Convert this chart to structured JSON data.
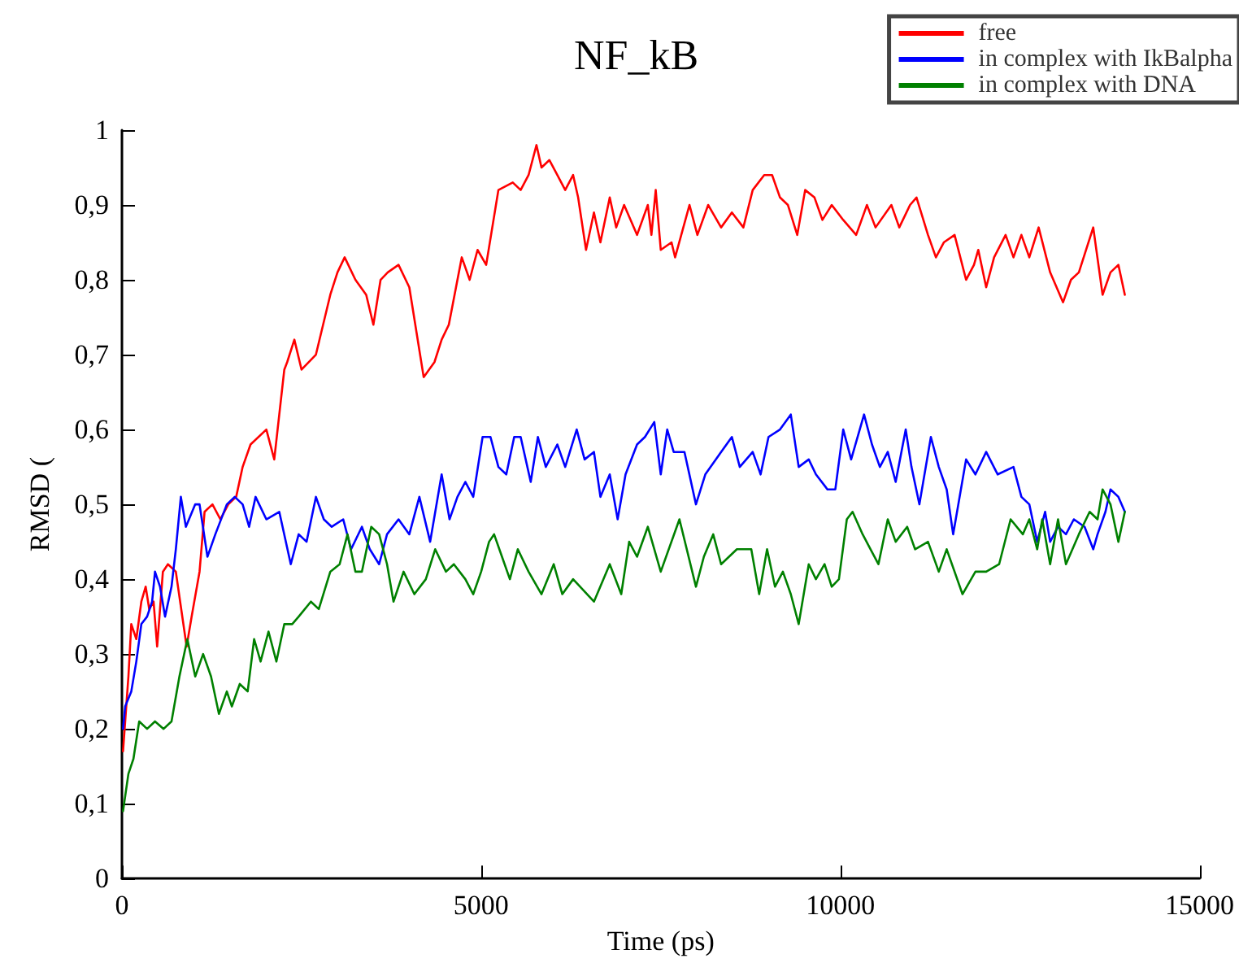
{
  "chart_data": {
    "type": "line",
    "title": "NF_kB",
    "xlabel": "Time (ps)",
    "ylabel": "RMSD (",
    "xlim": [
      0,
      15000
    ],
    "xticks": [
      0,
      5000,
      10000,
      15000
    ],
    "ylim": [
      0,
      1
    ],
    "yticks": [
      0,
      {
        "value": 0.1,
        "label": "0,1"
      },
      {
        "value": 0.2,
        "label": "0,2"
      },
      {
        "value": 0.3,
        "label": "0,3"
      },
      {
        "value": 0.4,
        "label": "0,4"
      },
      {
        "value": 0.5,
        "label": "0,5"
      },
      {
        "value": 0.6,
        "label": "0,6"
      },
      {
        "value": 0.7,
        "label": "0,7"
      },
      {
        "value": 0.8,
        "label": "0,8"
      },
      {
        "value": 0.9,
        "label": "0,9"
      },
      1
    ],
    "legend": "top right",
    "grid": false,
    "marker": "none",
    "line_style": "solid",
    "series": [
      {
        "name": "free",
        "color": "#ff0000",
        "x": [
          15,
          90,
          130,
          200,
          270,
          330,
          380,
          440,
          490,
          570,
          640,
          750,
          900,
          970,
          1080,
          1150,
          1260,
          1370,
          1480,
          1590,
          1680,
          1790,
          2010,
          2120,
          2190,
          2260,
          2300,
          2400,
          2500,
          2700,
          2900,
          3000,
          3100,
          3250,
          3400,
          3500,
          3600,
          3700,
          3850,
          4000,
          4100,
          4200,
          4350,
          4450,
          4550,
          4650,
          4730,
          4840,
          4950,
          5070,
          5240,
          5440,
          5550,
          5660,
          5770,
          5840,
          5950,
          6060,
          6170,
          6280,
          6350,
          6460,
          6570,
          6660,
          6790,
          6880,
          6990,
          7170,
          7320,
          7370,
          7430,
          7500,
          7650,
          7700,
          7900,
          8010,
          8160,
          8340,
          8490,
          8650,
          8780,
          8940,
          9050,
          9160,
          9270,
          9400,
          9510,
          9640,
          9750,
          9880,
          10040,
          10220,
          10370,
          10490,
          10710,
          10820,
          10970,
          11060,
          11220,
          11330,
          11440,
          11590,
          11750,
          11860,
          11920,
          12030,
          12140,
          12300,
          12410,
          12520,
          12630,
          12760,
          12920,
          13100,
          13210,
          13320,
          13520,
          13650,
          13760,
          13870,
          13960
        ],
        "values": [
          0.17,
          0.27,
          0.34,
          0.32,
          0.37,
          0.39,
          0.36,
          0.37,
          0.31,
          0.41,
          0.42,
          0.41,
          0.31,
          0.35,
          0.41,
          0.49,
          0.5,
          0.48,
          0.5,
          0.51,
          0.55,
          0.58,
          0.6,
          0.56,
          0.62,
          0.68,
          0.69,
          0.72,
          0.68,
          0.7,
          0.78,
          0.81,
          0.83,
          0.8,
          0.78,
          0.74,
          0.8,
          0.81,
          0.82,
          0.79,
          0.73,
          0.67,
          0.69,
          0.72,
          0.74,
          0.79,
          0.83,
          0.8,
          0.84,
          0.82,
          0.92,
          0.93,
          0.92,
          0.94,
          0.98,
          0.95,
          0.96,
          0.94,
          0.92,
          0.94,
          0.91,
          0.84,
          0.89,
          0.85,
          0.91,
          0.87,
          0.9,
          0.86,
          0.9,
          0.86,
          0.92,
          0.84,
          0.85,
          0.83,
          0.9,
          0.86,
          0.9,
          0.87,
          0.89,
          0.87,
          0.92,
          0.94,
          0.94,
          0.91,
          0.9,
          0.86,
          0.92,
          0.91,
          0.88,
          0.9,
          0.88,
          0.86,
          0.9,
          0.87,
          0.9,
          0.87,
          0.9,
          0.91,
          0.86,
          0.83,
          0.85,
          0.86,
          0.8,
          0.82,
          0.84,
          0.79,
          0.83,
          0.86,
          0.83,
          0.86,
          0.83,
          0.87,
          0.81,
          0.77,
          0.8,
          0.81,
          0.87,
          0.78,
          0.81,
          0.82,
          0.78
        ]
      },
      {
        "name": "in complex with IkBalpha",
        "color": "#0000ff",
        "x": [
          15,
          45,
          130,
          200,
          270,
          350,
          420,
          460,
          530,
          600,
          690,
          750,
          820,
          890,
          1020,
          1080,
          1190,
          1300,
          1460,
          1570,
          1680,
          1770,
          1860,
          2010,
          2190,
          2350,
          2460,
          2570,
          2700,
          2810,
          2920,
          3080,
          3190,
          3340,
          3450,
          3580,
          3690,
          3850,
          4000,
          4140,
          4290,
          4450,
          4560,
          4670,
          4780,
          4890,
          5020,
          5130,
          5240,
          5350,
          5460,
          5550,
          5690,
          5790,
          5900,
          6060,
          6170,
          6330,
          6440,
          6570,
          6660,
          6790,
          6900,
          7010,
          7170,
          7280,
          7410,
          7500,
          7590,
          7680,
          7830,
          7990,
          8120,
          8340,
          8490,
          8600,
          8780,
          8890,
          9000,
          9160,
          9310,
          9420,
          9560,
          9660,
          9820,
          9930,
          10040,
          10150,
          10330,
          10440,
          10550,
          10660,
          10770,
          10910,
          10990,
          11100,
          11260,
          11370,
          11480,
          11570,
          11750,
          11880,
          12030,
          12190,
          12410,
          12520,
          12630,
          12740,
          12850,
          12920,
          13030,
          13140,
          13250,
          13400,
          13520,
          13580,
          13690,
          13760,
          13870,
          13960
        ],
        "values": [
          0.2,
          0.23,
          0.25,
          0.29,
          0.34,
          0.35,
          0.37,
          0.41,
          0.39,
          0.35,
          0.39,
          0.44,
          0.51,
          0.47,
          0.5,
          0.5,
          0.43,
          0.46,
          0.5,
          0.51,
          0.5,
          0.47,
          0.51,
          0.48,
          0.49,
          0.42,
          0.46,
          0.45,
          0.51,
          0.48,
          0.47,
          0.48,
          0.44,
          0.47,
          0.44,
          0.42,
          0.46,
          0.48,
          0.46,
          0.51,
          0.45,
          0.54,
          0.48,
          0.51,
          0.53,
          0.51,
          0.59,
          0.59,
          0.55,
          0.54,
          0.59,
          0.59,
          0.53,
          0.59,
          0.55,
          0.58,
          0.55,
          0.6,
          0.56,
          0.57,
          0.51,
          0.54,
          0.48,
          0.54,
          0.58,
          0.59,
          0.61,
          0.54,
          0.6,
          0.57,
          0.57,
          0.5,
          0.54,
          0.57,
          0.59,
          0.55,
          0.57,
          0.54,
          0.59,
          0.6,
          0.62,
          0.55,
          0.56,
          0.54,
          0.52,
          0.52,
          0.6,
          0.56,
          0.62,
          0.58,
          0.55,
          0.57,
          0.53,
          0.6,
          0.55,
          0.5,
          0.59,
          0.55,
          0.52,
          0.46,
          0.56,
          0.54,
          0.57,
          0.54,
          0.55,
          0.51,
          0.5,
          0.45,
          0.49,
          0.45,
          0.47,
          0.46,
          0.48,
          0.47,
          0.44,
          0.46,
          0.49,
          0.52,
          0.51,
          0.49
        ]
      },
      {
        "name": "in complex with DNA",
        "color": "#008000",
        "x": [
          15,
          90,
          160,
          240,
          350,
          460,
          580,
          690,
          800,
          910,
          1020,
          1130,
          1240,
          1350,
          1460,
          1530,
          1640,
          1750,
          1840,
          1930,
          2040,
          2150,
          2260,
          2370,
          2460,
          2630,
          2740,
          2900,
          3030,
          3140,
          3250,
          3340,
          3470,
          3580,
          3690,
          3780,
          3920,
          4070,
          4230,
          4360,
          4510,
          4620,
          4780,
          4890,
          5000,
          5110,
          5180,
          5290,
          5400,
          5510,
          5660,
          5840,
          6010,
          6130,
          6280,
          6570,
          6790,
          6950,
          7060,
          7170,
          7320,
          7500,
          7760,
          7990,
          8100,
          8230,
          8340,
          8560,
          8760,
          8870,
          8980,
          9090,
          9200,
          9310,
          9420,
          9560,
          9660,
          9780,
          9880,
          9980,
          10090,
          10170,
          10310,
          10420,
          10530,
          10660,
          10770,
          10930,
          11040,
          11220,
          11370,
          11480,
          11700,
          11880,
          12030,
          12210,
          12370,
          12540,
          12630,
          12740,
          12810,
          12920,
          13030,
          13140,
          13320,
          13470,
          13580,
          13650,
          13760,
          13870,
          13960
        ],
        "values": [
          0.09,
          0.14,
          0.16,
          0.21,
          0.2,
          0.21,
          0.2,
          0.21,
          0.27,
          0.32,
          0.27,
          0.3,
          0.27,
          0.22,
          0.25,
          0.23,
          0.26,
          0.25,
          0.32,
          0.29,
          0.33,
          0.29,
          0.34,
          0.34,
          0.35,
          0.37,
          0.36,
          0.41,
          0.42,
          0.46,
          0.41,
          0.41,
          0.47,
          0.46,
          0.42,
          0.37,
          0.41,
          0.38,
          0.4,
          0.44,
          0.41,
          0.42,
          0.4,
          0.38,
          0.41,
          0.45,
          0.46,
          0.43,
          0.4,
          0.44,
          0.41,
          0.38,
          0.42,
          0.38,
          0.4,
          0.37,
          0.42,
          0.38,
          0.45,
          0.43,
          0.47,
          0.41,
          0.48,
          0.39,
          0.43,
          0.46,
          0.42,
          0.44,
          0.44,
          0.38,
          0.44,
          0.39,
          0.41,
          0.38,
          0.34,
          0.42,
          0.4,
          0.42,
          0.39,
          0.4,
          0.48,
          0.49,
          0.46,
          0.44,
          0.42,
          0.48,
          0.45,
          0.47,
          0.44,
          0.45,
          0.41,
          0.44,
          0.38,
          0.41,
          0.41,
          0.42,
          0.48,
          0.46,
          0.48,
          0.44,
          0.48,
          0.42,
          0.48,
          0.42,
          0.46,
          0.49,
          0.48,
          0.52,
          0.5,
          0.45,
          0.49
        ]
      }
    ]
  }
}
